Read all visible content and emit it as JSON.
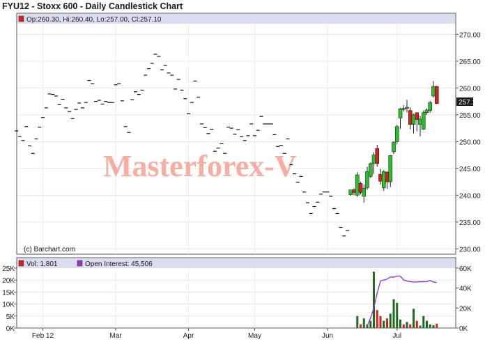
{
  "header": {
    "title": "FYU12 - Stoxx 600 - Daily Candlestick Chart",
    "ohlc_label": "Op:260.30, Hi:260.40, Lo:257.00, Cl:257.10",
    "last_price_tag": "257.10",
    "copyright": "(c) Barchart.com",
    "watermark": "Masterforex-V"
  },
  "volume_panel": {
    "vol_label": "Vol: 1,801",
    "oi_label": "Open Interest: 45,506"
  },
  "colors": {
    "up": "#2bbf2b",
    "down": "#d42020",
    "vol_up": "#1d6b1d",
    "vol_down": "#d42020",
    "open_interest": "#9933cc",
    "infobar": "#dcdcf0",
    "watermark": "#f5a093"
  },
  "chart_data": [
    {
      "type": "candlestick",
      "title": "FYU12 - Stoxx 600 - Daily Candlestick Chart",
      "ylim": [
        229,
        272
      ],
      "y_ticks": [
        "230.00",
        "235.00",
        "240.00",
        "245.00",
        "250.00",
        "255.00",
        "260.00",
        "265.00",
        "270.00"
      ],
      "x_ticks": [
        "Feb 12",
        "Mar",
        "Apr",
        "May",
        "Jun",
        "Jul"
      ],
      "flat_ticks": [
        [
          0,
          252.0
        ],
        [
          1,
          251.0
        ],
        [
          2,
          250.2
        ],
        [
          3,
          252.8
        ],
        [
          4,
          249.2
        ],
        [
          5,
          247.8
        ],
        [
          6,
          250.5
        ],
        [
          7,
          252.7
        ],
        [
          8,
          254.5
        ],
        [
          9,
          256.3
        ],
        [
          10,
          258.9
        ],
        [
          11,
          258.8
        ],
        [
          12,
          258.5
        ],
        [
          13,
          256.9
        ],
        [
          14,
          257.9
        ],
        [
          15,
          256.3
        ],
        [
          16,
          255.6
        ],
        [
          17,
          254.3
        ],
        [
          18,
          256.0
        ],
        [
          19,
          257.2
        ],
        [
          20,
          256.3
        ],
        [
          21,
          257.3
        ],
        [
          22,
          261.4
        ],
        [
          23,
          260.8
        ],
        [
          24,
          257.5
        ],
        [
          25,
          257.7
        ],
        [
          26,
          257.0
        ],
        [
          27,
          257.5
        ],
        [
          28,
          257.3
        ],
        [
          29,
          257.3
        ],
        [
          30,
          260.6
        ],
        [
          31,
          260.8
        ],
        [
          32,
          257.6
        ],
        [
          33,
          252.8
        ],
        [
          34,
          251.7
        ],
        [
          35,
          257.8
        ],
        [
          36,
          259.3
        ],
        [
          37,
          258.8
        ],
        [
          38,
          259.6
        ],
        [
          39,
          262.4
        ],
        [
          40,
          263.6
        ],
        [
          41,
          264.6
        ],
        [
          42,
          266.3
        ],
        [
          43,
          265.9
        ],
        [
          44,
          263.4
        ],
        [
          45,
          264.2
        ],
        [
          46,
          262.8
        ],
        [
          47,
          262.4
        ],
        [
          48,
          259.8
        ],
        [
          49,
          261.6
        ],
        [
          50,
          259.6
        ],
        [
          51,
          258.0
        ],
        [
          52,
          255.2
        ],
        [
          53,
          257.3
        ],
        [
          54,
          261.3
        ],
        [
          55,
          258.3
        ],
        [
          56,
          253.3
        ],
        [
          57,
          252.6
        ],
        [
          58,
          251.5
        ],
        [
          59,
          252.3
        ],
        [
          60,
          248.2
        ],
        [
          61,
          248.8
        ],
        [
          62,
          249.6
        ],
        [
          63,
          247.8
        ],
        [
          64,
          252.7
        ],
        [
          65,
          252.5
        ],
        [
          66,
          251.4
        ],
        [
          67,
          252.2
        ],
        [
          68,
          250.9
        ],
        [
          69,
          250.2
        ],
        [
          70,
          251.1
        ],
        [
          71,
          253.3
        ],
        [
          72,
          251.1
        ],
        [
          73,
          252.1
        ],
        [
          74,
          254.7
        ],
        [
          75,
          253.3
        ],
        [
          76,
          253.3
        ],
        [
          77,
          253.3
        ],
        [
          78,
          251.3
        ],
        [
          79,
          249.1
        ],
        [
          80,
          249.3
        ],
        [
          81,
          247.8
        ],
        [
          82,
          250.5
        ],
        [
          83,
          245.7
        ],
        [
          84,
          244.0
        ],
        [
          85,
          242.4
        ],
        [
          86,
          243.5
        ],
        [
          87,
          240.6
        ],
        [
          88,
          238.6
        ],
        [
          89,
          236.6
        ],
        [
          90,
          237.9
        ],
        [
          91,
          238.7
        ],
        [
          92,
          240.2
        ],
        [
          93,
          240.6
        ],
        [
          94,
          240.6
        ],
        [
          95,
          239.8
        ],
        [
          96,
          237.5
        ],
        [
          97,
          236.6
        ],
        [
          98,
          234.0
        ],
        [
          99,
          232.4
        ],
        [
          100,
          233.4
        ]
      ],
      "candles": [
        [
          101,
          240.1,
          241.0,
          241.0,
          239.9
        ],
        [
          102,
          241.0,
          240.5,
          241.3,
          240.0
        ],
        [
          103,
          240.0,
          243.8,
          244.3,
          239.7
        ],
        [
          104,
          242.2,
          240.5,
          242.5,
          240.2
        ],
        [
          105,
          239.8,
          241.3,
          242.0,
          238.6
        ],
        [
          106,
          241.4,
          244.4,
          245.3,
          241.0
        ],
        [
          107,
          243.5,
          245.9,
          246.1,
          243.2
        ],
        [
          108,
          245.9,
          247.5,
          248.0,
          244.0
        ],
        [
          109,
          248.7,
          245.9,
          249.4,
          245.3
        ],
        [
          110,
          243.9,
          242.6,
          244.9,
          242.0
        ],
        [
          111,
          241.4,
          244.4,
          244.7,
          240.8
        ],
        [
          112,
          244.3,
          242.5,
          244.5,
          241.2
        ],
        [
          113,
          242.5,
          247.4,
          247.5,
          241.5
        ],
        [
          114,
          248.1,
          249.9,
          250.1,
          247.7
        ],
        [
          115,
          250.0,
          252.8,
          253.1,
          249.5
        ],
        [
          116,
          254.4,
          256.1,
          256.3,
          252.4
        ],
        [
          117,
          256.2,
          256.0,
          256.8,
          255.6
        ],
        [
          118,
          256.2,
          256.4,
          257.8,
          255.4
        ],
        [
          119,
          255.8,
          253.2,
          256.4,
          252.3
        ],
        [
          120,
          253.2,
          255.0,
          255.2,
          251.5
        ],
        [
          121,
          255.4,
          254.1,
          255.4,
          251.9
        ],
        [
          122,
          253.2,
          254.2,
          254.8,
          251.0
        ],
        [
          123,
          252.3,
          255.4,
          255.8,
          252.2
        ],
        [
          124,
          255.4,
          255.9,
          256.2,
          255.0
        ],
        [
          125,
          255.8,
          257.3,
          257.6,
          255.4
        ],
        [
          126,
          258.5,
          260.3,
          261.3,
          258.2
        ],
        [
          127,
          260.3,
          257.1,
          260.4,
          257.0
        ]
      ]
    },
    {
      "type": "bar",
      "title": "",
      "series": [
        {
          "name": "Vol",
          "values_at_x": [
            [
              103,
              5000
            ],
            [
              104,
              1500
            ],
            [
              105,
              4000
            ],
            [
              106,
              1500
            ],
            [
              107,
              3000
            ],
            [
              108,
              23500
            ],
            [
              109,
              7500
            ],
            [
              110,
              5000
            ],
            [
              111,
              3000
            ],
            [
              112,
              4000
            ],
            [
              113,
              6000
            ],
            [
              114,
              12000
            ],
            [
              115,
              10500
            ],
            [
              116,
              3500
            ],
            [
              117,
              1500
            ],
            [
              118,
              2500
            ],
            [
              119,
              1500
            ],
            [
              120,
              8000
            ],
            [
              121,
              3000
            ],
            [
              122,
              1000
            ],
            [
              123,
              5000
            ],
            [
              124,
              3000
            ],
            [
              125,
              1500
            ],
            [
              126,
              1200
            ],
            [
              127,
              1801
            ]
          ]
        },
        {
          "name": "Open Interest",
          "axis": "right",
          "values_at_x": [
            [
              106,
              2000
            ],
            [
              107,
              10000
            ],
            [
              108,
              20000
            ],
            [
              109,
              35000
            ],
            [
              110,
              47000
            ],
            [
              111,
              48000
            ],
            [
              112,
              49000
            ],
            [
              113,
              51000
            ],
            [
              114,
              51000
            ],
            [
              115,
              52000
            ],
            [
              116,
              52000
            ],
            [
              117,
              48000
            ],
            [
              118,
              47000
            ],
            [
              119,
              46500
            ],
            [
              120,
              46000
            ],
            [
              121,
              46200
            ],
            [
              122,
              46300
            ],
            [
              123,
              46400
            ],
            [
              124,
              46500
            ],
            [
              125,
              47500
            ],
            [
              126,
              46000
            ],
            [
              127,
              45506
            ]
          ]
        }
      ],
      "y_ticks_left": [
        "0K",
        "5K",
        "10K",
        "15K",
        "20K",
        "25K"
      ],
      "ylim_left": [
        0,
        25000
      ],
      "y_ticks_right": [
        "0K",
        "20K",
        "40K",
        "60K"
      ],
      "ylim_right": [
        0,
        60000
      ]
    }
  ]
}
